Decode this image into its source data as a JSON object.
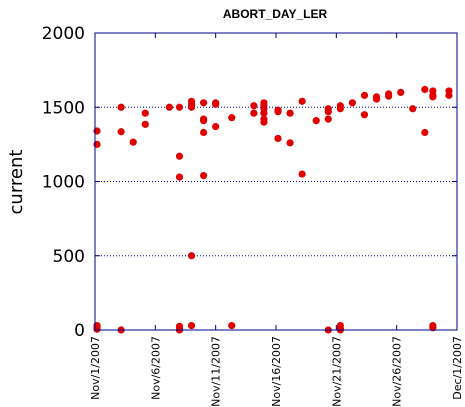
{
  "chart_data": {
    "type": "scatter",
    "title": "ABORT_DAY_LER",
    "xlabel": "",
    "ylabel": "current",
    "ylim": [
      0,
      2000
    ],
    "xlim": [
      "11/1/2007",
      "12/1/2007"
    ],
    "yticks": [
      "0",
      "500",
      "1000",
      "1500",
      "2000"
    ],
    "xticks": [
      "Nov/1/2007",
      "Nov/6/2007",
      "Nov/11/2007",
      "Nov/16/2007",
      "Nov/21/2007",
      "Nov/26/2007",
      "Dec/1/2007"
    ],
    "grid": "horizontal dotted",
    "marker_color": "#e00000",
    "axis_color": "#00008b",
    "series": [
      {
        "points": [
          [
            "11/1/2007 04:00",
            1340
          ],
          [
            "11/1/2007 04:00",
            1250
          ],
          [
            "11/1/2007 04:00",
            30
          ],
          [
            "11/1/2007 04:00",
            15
          ],
          [
            "11/1/2007 04:00",
            5
          ],
          [
            "11/3/2007 04:00",
            1500
          ],
          [
            "11/3/2007 04:00",
            1335
          ],
          [
            "11/3/2007 04:00",
            0
          ],
          [
            "11/4/2007 04:00",
            1265
          ],
          [
            "11/5/2007 04:00",
            1460
          ],
          [
            "11/5/2007 04:00",
            1385
          ],
          [
            "11/7/2007 04:00",
            1500
          ],
          [
            "11/8/2007 00:00",
            1500
          ],
          [
            "11/8/2007 00:00",
            1170
          ],
          [
            "11/8/2007 00:00",
            1030
          ],
          [
            "11/8/2007 00:00",
            25
          ],
          [
            "11/8/2007 00:00",
            10
          ],
          [
            "11/8/2007 00:00",
            0
          ],
          [
            "11/9/2007 00:00",
            1540
          ],
          [
            "11/9/2007 00:00",
            1520
          ],
          [
            "11/9/2007 00:00",
            1500
          ],
          [
            "11/9/2007 00:00",
            500
          ],
          [
            "11/9/2007 00:00",
            30
          ],
          [
            "11/10/2007 00:00",
            1530
          ],
          [
            "11/10/2007 00:00",
            1420
          ],
          [
            "11/10/2007 00:00",
            1410
          ],
          [
            "11/10/2007 00:00",
            1330
          ],
          [
            "11/10/2007 00:00",
            1040
          ],
          [
            "11/11/2007 00:00",
            1530
          ],
          [
            "11/11/2007 00:00",
            1520
          ],
          [
            "11/11/2007 00:00",
            1370
          ],
          [
            "11/12/2007 08:00",
            1430
          ],
          [
            "11/12/2007 08:00",
            30
          ],
          [
            "11/14/2007 04:00",
            1510
          ],
          [
            "11/14/2007 04:00",
            1460
          ],
          [
            "11/15/2007 00:00",
            1530
          ],
          [
            "11/15/2007 00:00",
            1510
          ],
          [
            "11/15/2007 00:00",
            1490
          ],
          [
            "11/15/2007 00:00",
            1460
          ],
          [
            "11/15/2007 00:00",
            1420
          ],
          [
            "11/15/2007 00:00",
            1400
          ],
          [
            "11/16/2007 04:00",
            1480
          ],
          [
            "11/16/2007 04:00",
            1470
          ],
          [
            "11/16/2007 04:00",
            1290
          ],
          [
            "11/17/2007 04:00",
            1460
          ],
          [
            "11/17/2007 04:00",
            1260
          ],
          [
            "11/18/2007 04:00",
            1540
          ],
          [
            "11/18/2007 04:00",
            1050
          ],
          [
            "11/19/2007 08:00",
            1410
          ],
          [
            "11/20/2007 08:00",
            1490
          ],
          [
            "11/20/2007 08:00",
            1470
          ],
          [
            "11/20/2007 08:00",
            1420
          ],
          [
            "11/20/2007 08:00",
            0
          ],
          [
            "11/21/2007 08:00",
            1510
          ],
          [
            "11/21/2007 08:00",
            1490
          ],
          [
            "11/21/2007 08:00",
            30
          ],
          [
            "11/21/2007 08:00",
            10
          ],
          [
            "11/21/2007 08:00",
            0
          ],
          [
            "11/22/2007 08:00",
            1530
          ],
          [
            "11/23/2007 08:00",
            1580
          ],
          [
            "11/23/2007 08:00",
            1450
          ],
          [
            "11/24/2007 08:00",
            1570
          ],
          [
            "11/24/2007 08:00",
            1555
          ],
          [
            "11/25/2007 08:00",
            1590
          ],
          [
            "11/25/2007 08:00",
            1575
          ],
          [
            "11/26/2007 08:00",
            1600
          ],
          [
            "11/27/2007 08:00",
            1490
          ],
          [
            "11/28/2007 08:00",
            1620
          ],
          [
            "11/28/2007 08:00",
            1330
          ],
          [
            "11/29/2007 00:00",
            1610
          ],
          [
            "11/29/2007 00:00",
            1580
          ],
          [
            "11/29/2007 00:00",
            1570
          ],
          [
            "11/29/2007 00:00",
            30
          ],
          [
            "11/29/2007 00:00",
            15
          ],
          [
            "11/30/2007 08:00",
            1610
          ],
          [
            "11/30/2007 08:00",
            1580
          ]
        ]
      }
    ]
  }
}
